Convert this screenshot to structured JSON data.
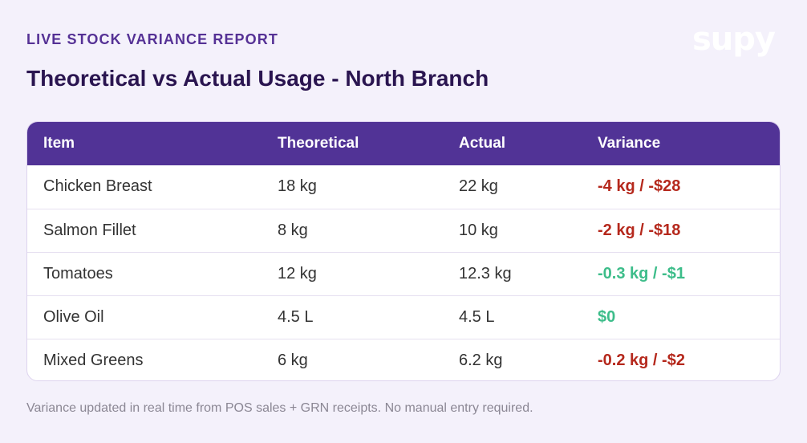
{
  "header": {
    "eyebrow": "LIVE STOCK VARIANCE REPORT",
    "title": "Theoretical vs Actual Usage - North Branch",
    "logo_text": "supy"
  },
  "table": {
    "columns": [
      "Item",
      "Theoretical",
      "Actual",
      "Variance"
    ],
    "rows": [
      {
        "item": "Chicken Breast",
        "theoretical": "18 kg",
        "actual": "22 kg",
        "variance": "-4 kg / -$28",
        "status": "negative"
      },
      {
        "item": "Salmon Fillet",
        "theoretical": "8 kg",
        "actual": "10 kg",
        "variance": "-2 kg / -$18",
        "status": "negative"
      },
      {
        "item": "Tomatoes",
        "theoretical": "12 kg",
        "actual": "12.3 kg",
        "variance": "-0.3 kg / -$1",
        "status": "ok"
      },
      {
        "item": "Olive Oil",
        "theoretical": "4.5 L",
        "actual": "4.5 L",
        "variance": "$0",
        "status": "ok"
      },
      {
        "item": "Mixed Greens",
        "theoretical": "6 kg",
        "actual": "6.2 kg",
        "variance": "-0.2 kg / -$2",
        "status": "negative"
      }
    ]
  },
  "footnote": "Variance updated in real time from POS sales + GRN receipts. No manual entry required.",
  "colors": {
    "accent": "#513396",
    "negative": "#b5281c",
    "positive": "#3dbd8a",
    "background": "#f4f1fb"
  }
}
